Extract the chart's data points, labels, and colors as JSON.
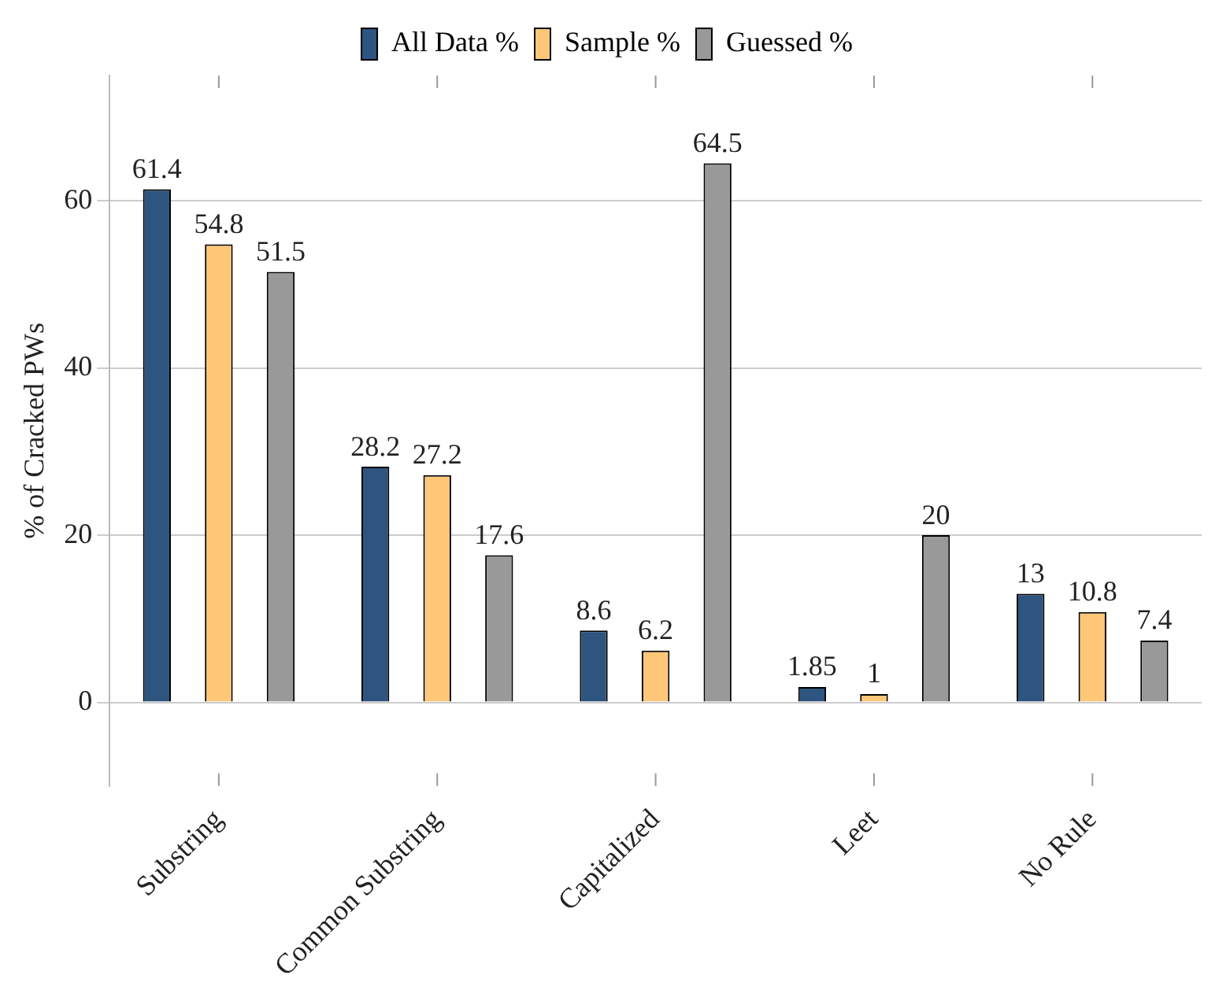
{
  "chart_data": {
    "type": "bar",
    "ylabel": "% of Cracked PWs",
    "categories": [
      "Substring",
      "Common Substring",
      "Capitalized",
      "Leet",
      "No Rule"
    ],
    "series": [
      {
        "name": "All Data %",
        "color": "#2e5480",
        "values": [
          61.4,
          28.2,
          8.6,
          1.85,
          13
        ]
      },
      {
        "name": "Sample %",
        "color": "#fec778",
        "values": [
          54.8,
          27.2,
          6.2,
          1,
          10.8
        ]
      },
      {
        "name": "Guessed %",
        "color": "#999999",
        "values": [
          51.5,
          17.6,
          64.5,
          20,
          7.4
        ]
      }
    ],
    "ylim": [
      -10,
      75
    ],
    "yticks": [
      0,
      20,
      40,
      60
    ],
    "grid": "y",
    "legend": "top",
    "data_labels": true
  }
}
